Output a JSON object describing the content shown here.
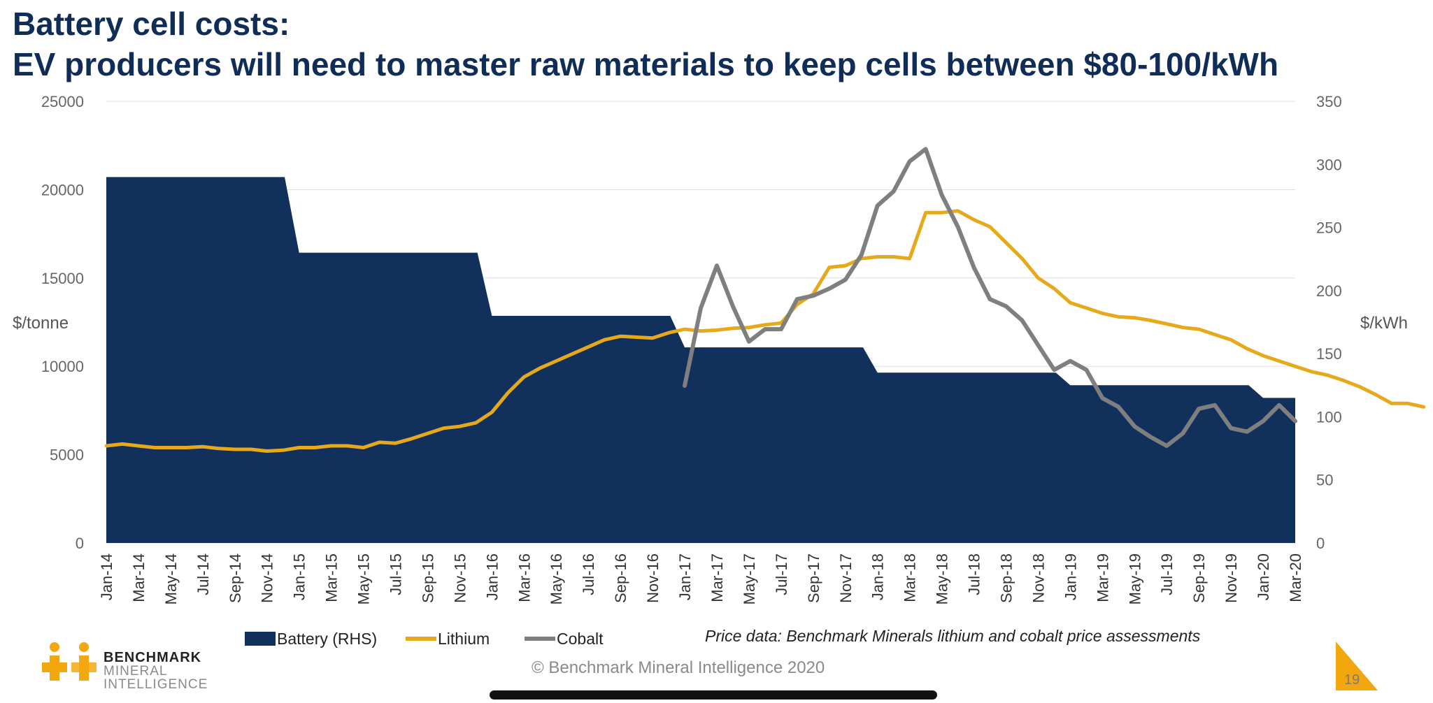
{
  "title_line1": "Battery cell costs:",
  "title_line2": "EV producers will need to master raw materials to keep cells between $80-100/kWh",
  "source_note": "Price data: Benchmark Minerals lithium and cobalt price assessments",
  "copyright": "© Benchmark Mineral Intelligence 2020",
  "page_number": "19",
  "logo": {
    "line1": "BENCHMARK",
    "line2": "MINERAL",
    "line3": "INTELLIGENCE"
  },
  "colors": {
    "battery": "#12305c",
    "lithium": "#e5a91b",
    "cobalt": "#7f7f7f",
    "title": "#0f2d57",
    "logo_orange": "#f3a70f"
  },
  "chart_data": {
    "type": "area+line",
    "ylabel_left": "$/tonne",
    "ylabel_right": "$/kWh",
    "ylim_left": [
      0,
      25000
    ],
    "ylim_right": [
      0,
      350
    ],
    "yticks_left": [
      0,
      5000,
      10000,
      15000,
      20000,
      25000
    ],
    "yticks_right": [
      0,
      50,
      100,
      150,
      200,
      250,
      300,
      350
    ],
    "x_tick_labels": [
      "Jan-14",
      "Mar-14",
      "May-14",
      "Jul-14",
      "Sep-14",
      "Nov-14",
      "Jan-15",
      "Mar-15",
      "May-15",
      "Jul-15",
      "Sep-15",
      "Nov-15",
      "Jan-16",
      "Mar-16",
      "May-16",
      "Jul-16",
      "Sep-16",
      "Nov-16",
      "Jan-17",
      "Mar-17",
      "May-17",
      "Jul-17",
      "Sep-17",
      "Nov-17",
      "Jan-18",
      "Mar-18",
      "May-18",
      "Jul-18",
      "Sep-18",
      "Nov-18",
      "Jan-19",
      "Mar-19",
      "May-19",
      "Jul-19",
      "Sep-19",
      "Nov-19",
      "Jan-20",
      "Mar-20"
    ],
    "legend": [
      "Battery (RHS)",
      "Lithium",
      "Cobalt"
    ],
    "series": [
      {
        "name": "Battery (RHS)",
        "kind": "area",
        "axis": "right",
        "steps": [
          {
            "start": "Jan-14",
            "value": 290
          },
          {
            "start": "Jan-15",
            "value": 230
          },
          {
            "start": "Jan-16",
            "value": 180
          },
          {
            "start": "Jan-17",
            "value": 155
          },
          {
            "start": "Jan-18",
            "value": 135
          },
          {
            "start": "Jan-19",
            "value": 125
          },
          {
            "start": "Jan-20",
            "value": 115
          }
        ],
        "end": "Mar-20"
      },
      {
        "name": "Lithium",
        "kind": "line",
        "axis": "left",
        "start": "Jan-14",
        "values": [
          5500,
          5600,
          5500,
          5400,
          5400,
          5400,
          5450,
          5350,
          5300,
          5300,
          5200,
          5250,
          5400,
          5400,
          5500,
          5500,
          5400,
          5700,
          5650,
          5900,
          6200,
          6500,
          6600,
          6800,
          7400,
          8500,
          9400,
          9900,
          10300,
          10700,
          11100,
          11500,
          11700,
          11650,
          11600,
          11900,
          12100,
          12000,
          12050,
          12150,
          12200,
          12350,
          12450,
          13500,
          14100,
          15600,
          15700,
          16100,
          16200,
          16200,
          16100,
          18700,
          18700,
          18800,
          18300,
          17900,
          17000,
          16100,
          15000,
          14400,
          13600,
          13300,
          13000,
          12800,
          12750,
          12600,
          12400,
          12200,
          12100,
          11800,
          11500,
          11000,
          10600,
          10300,
          10000,
          9700,
          9500,
          9200,
          8850,
          8400,
          7900,
          7900,
          7700
        ]
      },
      {
        "name": "Cobalt",
        "kind": "line",
        "axis": "left",
        "start": "Jan-17",
        "values": [
          8900,
          13300,
          15700,
          13400,
          11400,
          12100,
          12100,
          13800,
          14000,
          14400,
          14900,
          16300,
          19100,
          19900,
          21600,
          22300,
          19700,
          17900,
          15600,
          13800,
          13400,
          12600,
          11200,
          9800,
          10300,
          9800,
          8200,
          7700,
          6600,
          6000,
          5500,
          6200,
          7600,
          7800,
          6500,
          6300,
          6900,
          7800,
          6900
        ]
      }
    ]
  }
}
